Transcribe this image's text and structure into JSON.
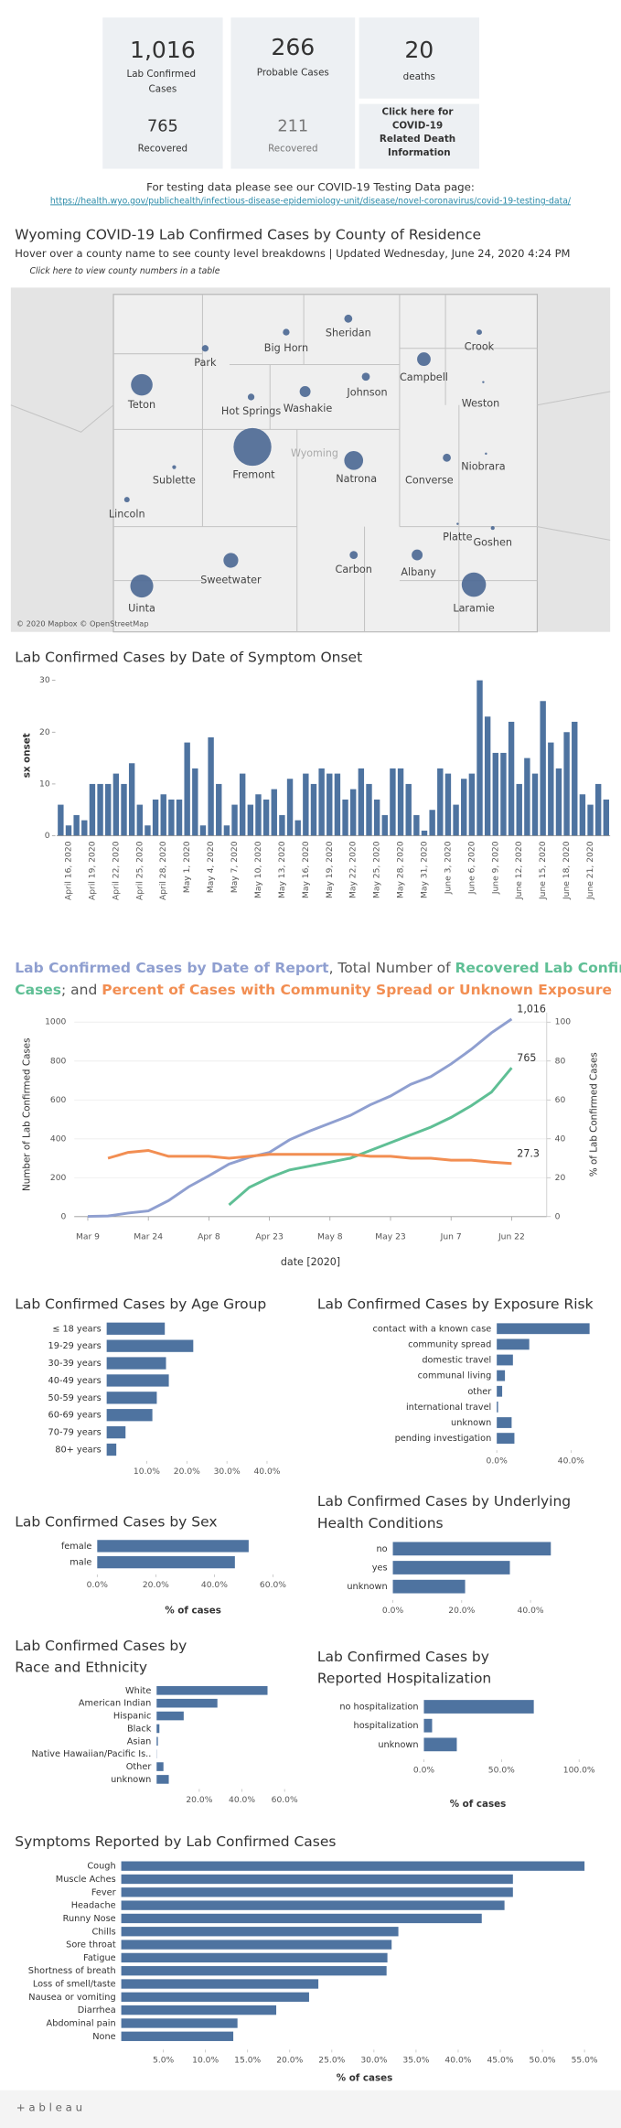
{
  "stats": [
    {
      "value": "1,016",
      "label": "Lab Confirmed Cases",
      "sub_value": "765",
      "sub_label": "Recovered"
    },
    {
      "value": "266",
      "label": "Probable Cases",
      "sub_value": "211",
      "sub_label": "Recovered"
    },
    {
      "value": "20",
      "label": "deaths"
    }
  ],
  "death_link": "Click here for COVID-19 Related Death Information",
  "testing_text": "For testing data please see our COVID-19 Testing Data page:",
  "testing_link": "https://health.wyo.gov/publichealth/infectious-disease-epidemiology-unit/disease/novel-coronavirus/covid-19-testing-data/",
  "map": {
    "title": "Wyoming COVID-19 Lab Confirmed Cases by County of Residence",
    "subtitle": "Hover over a county name to see county level breakdowns | Updated Wednesday, June 24, 2020 4:24 PM",
    "note": "Click here to view county numbers in a table",
    "state_label": "Wyoming",
    "attribution": "© 2020 Mapbox © OpenStreetMap",
    "counties": [
      {
        "name": "Teton",
        "cases": 94
      },
      {
        "name": "Park",
        "cases": 9
      },
      {
        "name": "Big Horn",
        "cases": 9
      },
      {
        "name": "Sheridan",
        "cases": 13
      },
      {
        "name": "Crook",
        "cases": 6
      },
      {
        "name": "Hot Springs",
        "cases": 9
      },
      {
        "name": "Washakie",
        "cases": 24
      },
      {
        "name": "Johnson",
        "cases": 13
      },
      {
        "name": "Campbell",
        "cases": 37
      },
      {
        "name": "Weston",
        "cases": 1
      },
      {
        "name": "Fremont",
        "cases": 288
      },
      {
        "name": "Natrona",
        "cases": 72
      },
      {
        "name": "Sublette",
        "cases": 3
      },
      {
        "name": "Converse",
        "cases": 13
      },
      {
        "name": "Niobrara",
        "cases": 1
      },
      {
        "name": "Lincoln",
        "cases": 6
      },
      {
        "name": "Sweetwater",
        "cases": 44
      },
      {
        "name": "Carbon",
        "cases": 13
      },
      {
        "name": "Albany",
        "cases": 24
      },
      {
        "name": "Platte",
        "cases": 1
      },
      {
        "name": "Goshen",
        "cases": 3
      },
      {
        "name": "Uinta",
        "cases": 106
      },
      {
        "name": "Laramie",
        "cases": 119
      }
    ]
  },
  "chart_data": [
    {
      "type": "bar",
      "title": "Lab Confirmed Cases by Date of Symptom Onset",
      "y_label": "sx onset",
      "color": "#4e73a0",
      "categories": [
        null,
        "April 16, 2020",
        null,
        null,
        "April 19, 2020",
        null,
        null,
        "April 22, 2020",
        null,
        null,
        "April 25, 2020",
        null,
        null,
        "April 28, 2020",
        null,
        null,
        "May 1, 2020",
        null,
        null,
        "May 4, 2020",
        null,
        null,
        "May 7, 2020",
        null,
        null,
        "May 10, 2020",
        null,
        null,
        "May 13, 2020",
        null,
        null,
        "May 16, 2020",
        null,
        null,
        "May 19, 2020",
        null,
        null,
        "May 22, 2020",
        null,
        null,
        "May 25, 2020",
        null,
        null,
        "May 28, 2020",
        null,
        null,
        "May 31, 2020",
        null,
        null,
        "June 3, 2020",
        null,
        null,
        "June 6, 2020",
        null,
        null,
        "June 9, 2020",
        null,
        null,
        "June 12, 2020",
        null,
        null,
        "June 15, 2020",
        null,
        null,
        "June 18, 2020",
        null,
        null,
        "June 21, 2020",
        null,
        null
      ],
      "values": [
        6,
        2,
        4,
        3,
        10,
        10,
        10,
        12,
        10,
        14,
        6,
        2,
        7,
        8,
        7,
        7,
        18,
        13,
        2,
        19,
        10,
        2,
        6,
        12,
        6,
        8,
        7,
        9,
        4,
        11,
        3,
        12,
        10,
        13,
        12,
        12,
        7,
        9,
        13,
        10,
        7,
        4,
        13,
        13,
        10,
        4,
        1,
        5,
        13,
        12,
        6,
        11,
        12,
        30,
        23,
        16,
        16,
        22,
        10,
        15,
        12,
        26,
        18,
        13,
        20,
        22,
        8,
        6,
        10,
        7
      ],
      "ylim": [
        0,
        31
      ],
      "yticks": [
        0,
        10,
        20,
        30
      ]
    },
    {
      "type": "line",
      "title_lines": [
        [
          {
            "text": "Lab Confirmed Cases by Date of Report",
            "color": "#8f9fd0"
          },
          {
            "text": ", Total Number of ",
            "color": "#555555"
          },
          {
            "text": "Recovered Lab Confirmed",
            "color": "#5fbf95"
          }
        ],
        [
          {
            "text": "Cases",
            "color": "#5fbf95"
          },
          {
            "text": "; and ",
            "color": "#555555"
          },
          {
            "text": "Percent of Cases with Community Spread or Unknown Exposure",
            "color": "#f28e52"
          }
        ]
      ],
      "y_label": "Number of Lab Confirmed Cases",
      "y2_label": "% of Lab Confirmed Cases",
      "x_label": "date [2020]",
      "x": [
        "Mar 9",
        null,
        null,
        "Mar 24",
        null,
        null,
        "Apr 8",
        null,
        null,
        "Apr 23",
        null,
        null,
        "May 8",
        null,
        null,
        "May 23",
        null,
        null,
        "Jun 7",
        null,
        null,
        "Jun 22"
      ],
      "series": [
        {
          "name": "Lab Confirmed Cases",
          "color": "#8f9fd0",
          "values": [
            1,
            3,
            18,
            29,
            82,
            153,
            210,
            270,
            305,
            330,
            395,
            440,
            480,
            520,
            575,
            620,
            680,
            720,
            785,
            860,
            945,
            1016
          ],
          "value_labels": [
            null,
            null,
            null,
            null,
            null,
            null,
            null,
            null,
            null,
            null,
            null,
            null,
            null,
            null,
            null,
            null,
            null,
            null,
            null,
            null,
            null,
            "1,016"
          ]
        },
        {
          "name": "Recovered Lab Confirmed Cases",
          "color": "#5fbf95",
          "values": [
            null,
            null,
            null,
            null,
            null,
            null,
            null,
            60,
            150,
            200,
            240,
            260,
            280,
            300,
            340,
            380,
            420,
            460,
            510,
            570,
            640,
            765
          ],
          "value_labels": [
            null,
            null,
            null,
            null,
            null,
            null,
            null,
            null,
            null,
            null,
            null,
            null,
            null,
            null,
            null,
            null,
            null,
            null,
            null,
            null,
            null,
            "765"
          ]
        },
        {
          "name": "Percent of Cases with Community Spread or Unknown Exposure",
          "color": "#f28e52",
          "axis": "y2",
          "values": [
            null,
            30,
            33,
            34,
            31,
            31,
            31,
            30,
            31,
            32,
            32,
            32,
            32,
            32,
            31,
            31,
            30,
            30,
            29,
            29,
            28,
            27.3
          ],
          "value_labels": [
            null,
            null,
            null,
            null,
            null,
            null,
            null,
            null,
            null,
            null,
            null,
            null,
            null,
            null,
            null,
            null,
            null,
            null,
            null,
            null,
            null,
            "27.3"
          ]
        }
      ],
      "ylim": [
        0,
        1050
      ],
      "yticks": [
        0,
        200,
        400,
        600,
        800,
        1000
      ],
      "y2lim": [
        0,
        105
      ],
      "y2ticks": [
        0,
        20,
        40,
        60,
        80,
        100
      ],
      "grid": true
    },
    {
      "type": "hbar",
      "title": "Lab Confirmed Cases by Age Group",
      "color": "#4e73a0",
      "categories": [
        "≤ 18 years",
        "19-29 years",
        "30-39 years",
        "40-49 years",
        "50-59 years",
        "60-69 years",
        "70-79 years",
        "80+ years"
      ],
      "values": [
        14.5,
        21.6,
        14.8,
        15.5,
        12.5,
        11.4,
        4.7,
        2.4
      ],
      "xlim": [
        0,
        44
      ],
      "xticks": [
        {
          "value": 10,
          "label": "10.0%"
        },
        {
          "value": 20,
          "label": "20.0%"
        },
        {
          "value": 30,
          "label": "30.0%"
        },
        {
          "value": 40,
          "label": "40.0%"
        }
      ]
    },
    {
      "type": "hbar",
      "title": "Lab Confirmed Cases by Exposure Risk",
      "color": "#4e73a0",
      "categories": [
        "contact with a known case",
        "community spread",
        "domestic travel",
        "communal living",
        "other",
        "international travel",
        "unknown",
        "pending investigation"
      ],
      "values": [
        50,
        17.5,
        8.7,
        4.4,
        2.9,
        0.7,
        8,
        9.5
      ],
      "xlim": [
        0,
        55
      ],
      "xticks": [
        {
          "value": 0,
          "label": "0.0%"
        },
        {
          "value": 40,
          "label": "40.0%"
        }
      ]
    },
    {
      "type": "hbar",
      "title": "Lab Confirmed Cases by Sex",
      "x_label": "% of cases",
      "color": "#4e73a0",
      "categories": [
        "female",
        "male"
      ],
      "values": [
        51.7,
        47
      ],
      "xlim": [
        0,
        65
      ],
      "xticks": [
        {
          "value": 0,
          "label": "0.0%"
        },
        {
          "value": 20,
          "label": "20.0%"
        },
        {
          "value": 40,
          "label": "40.0%"
        },
        {
          "value": 60,
          "label": "60.0%"
        }
      ]
    },
    {
      "type": "hbar",
      "title": "Lab Confirmed Cases by Underlying Health Conditions",
      "color": "#4e73a0",
      "categories": [
        "no",
        "yes",
        "unknown"
      ],
      "values": [
        45.9,
        34,
        21
      ],
      "xlim": [
        0,
        60
      ],
      "xticks": [
        {
          "value": 0,
          "label": "0.0%"
        },
        {
          "value": 20,
          "label": "20.0%"
        },
        {
          "value": 40,
          "label": "40.0%"
        }
      ]
    },
    {
      "type": "hbar",
      "title": "Lab Confirmed Cases by Race and Ethnicity",
      "color": "#4e73a0",
      "categories": [
        "White",
        "American Indian",
        "Hispanic",
        "Black",
        "Asian",
        "Native Hawaiian/Pacific Is..",
        "Other",
        "unknown"
      ],
      "values": [
        52,
        28.5,
        12.7,
        1.3,
        0.6,
        0.1,
        3.2,
        5.7
      ],
      "xlim": [
        0,
        68
      ],
      "xticks": [
        {
          "value": 20,
          "label": "20.0%"
        },
        {
          "value": 40,
          "label": "40.0%"
        },
        {
          "value": 60,
          "label": "60.0%"
        }
      ]
    },
    {
      "type": "hbar",
      "title": "Lab Confirmed Cases by Reported Hospitalization",
      "x_label": "% of cases",
      "color": "#4e73a0",
      "categories": [
        "no hospitalization",
        "hospitalization",
        "unknown"
      ],
      "values": [
        70.8,
        5.3,
        21.2
      ],
      "xlim": [
        0,
        110
      ],
      "xticks": [
        {
          "value": 0,
          "label": "0.0%"
        },
        {
          "value": 50,
          "label": "50.0%"
        },
        {
          "value": 100,
          "label": "100.0%"
        }
      ]
    },
    {
      "type": "hbar",
      "title": "Symptoms Reported by Lab Confirmed Cases",
      "x_label": "% of cases",
      "color": "#4e73a0",
      "categories": [
        "Cough",
        "Muscle Aches",
        "Fever",
        "Headache",
        "Runny Nose",
        "Chills",
        "Sore throat",
        "Fatigue",
        "Shortness of breath",
        "Loss of smell/taste",
        "Nausea or vomiting",
        "Diarrhea",
        "Abdominal pain",
        "None"
      ],
      "values": [
        55,
        46.5,
        46.5,
        45.5,
        42.8,
        32.9,
        32.1,
        31.6,
        31.5,
        23.4,
        22.3,
        18.4,
        13.8,
        13.3
      ],
      "xlim": [
        0,
        58
      ],
      "xticks": [
        {
          "value": 5,
          "label": "5.0%"
        },
        {
          "value": 10,
          "label": "10.0%"
        },
        {
          "value": 15,
          "label": "15.0%"
        },
        {
          "value": 20,
          "label": "20.0%"
        },
        {
          "value": 25,
          "label": "25.0%"
        },
        {
          "value": 30,
          "label": "30.0%"
        },
        {
          "value": 35,
          "label": "35.0%"
        },
        {
          "value": 40,
          "label": "40.0%"
        },
        {
          "value": 45,
          "label": "45.0%"
        },
        {
          "value": 50,
          "label": "50.0%"
        },
        {
          "value": 55,
          "label": "55.0%"
        }
      ]
    }
  ],
  "footer": "+ a b l e a u"
}
